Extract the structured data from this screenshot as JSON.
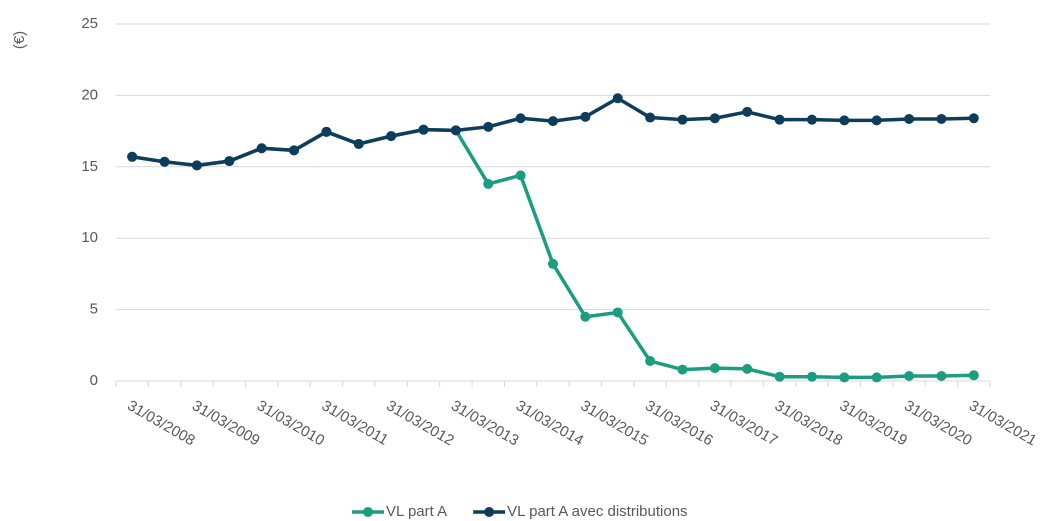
{
  "chart_data": {
    "type": "line",
    "y_label": "(€)",
    "categories": [
      "31/03/2008",
      null,
      "31/03/2009",
      null,
      "31/03/2010",
      null,
      "31/03/2011",
      null,
      "31/03/2012",
      null,
      "31/03/2013",
      null,
      "31/03/2014",
      null,
      "31/03/2015",
      null,
      "31/03/2016",
      null,
      "31/03/2017",
      null,
      "31/03/2018",
      null,
      "31/03/2019",
      null,
      "31/03/2020",
      null,
      "31/03/2021"
    ],
    "series": [
      {
        "name": "VL part A",
        "color": "#1a9e7f",
        "values": [
          15.7,
          15.35,
          15.1,
          15.4,
          16.3,
          16.15,
          17.45,
          16.6,
          17.15,
          17.6,
          17.55,
          13.8,
          14.4,
          8.2,
          4.5,
          4.8,
          1.4,
          0.8,
          0.9,
          0.85,
          0.3,
          0.3,
          0.25,
          0.25,
          0.35,
          0.35,
          0.4
        ]
      },
      {
        "name": "VL part A avec distributions",
        "color": "#0e3d5b",
        "values": [
          15.7,
          15.35,
          15.1,
          15.4,
          16.3,
          16.15,
          17.45,
          16.6,
          17.15,
          17.6,
          17.55,
          17.8,
          18.4,
          18.2,
          18.5,
          19.8,
          18.45,
          18.3,
          18.4,
          18.85,
          18.3,
          18.3,
          18.25,
          18.25,
          18.35,
          18.35,
          18.4
        ]
      }
    ],
    "ylim": [
      0,
      25
    ],
    "yticks": [
      0,
      5,
      10,
      15,
      20,
      25
    ],
    "grid": true
  }
}
